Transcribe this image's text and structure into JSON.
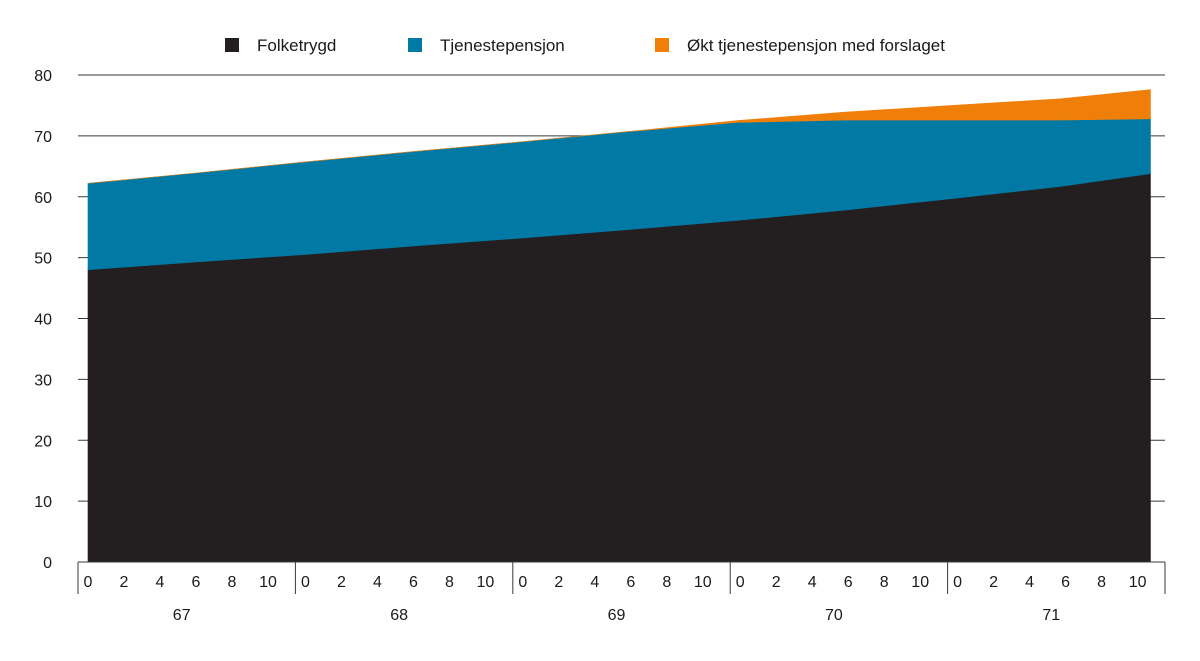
{
  "chart_data": {
    "type": "area",
    "stacked": true,
    "title": "",
    "xlabel": "",
    "ylabel": "",
    "ylim": [
      0,
      80
    ],
    "yticks": [
      0,
      10,
      20,
      30,
      40,
      50,
      60,
      70,
      80
    ],
    "grid": "horizontal",
    "legend_position": "top",
    "x_groups": [
      "67",
      "68",
      "69",
      "70",
      "71"
    ],
    "x_sub_ticks": [
      "0",
      "2",
      "4",
      "6",
      "8",
      "10"
    ],
    "x_months_per_group": 12,
    "x": [
      0,
      6,
      12,
      18,
      24,
      30,
      36,
      42,
      48,
      54,
      59
    ],
    "series": [
      {
        "name": "Folketrygd",
        "color": "#231f20",
        "values": [
          48.0,
          49.3,
          50.5,
          51.9,
          53.2,
          54.6,
          56.1,
          57.8,
          59.7,
          61.7,
          63.8
        ]
      },
      {
        "name": "Tjenestepensjon",
        "color": "#0079a4",
        "values": [
          14.2,
          14.6,
          15.2,
          15.5,
          15.8,
          16.1,
          16.1,
          14.8,
          12.9,
          10.9,
          9.0
        ]
      },
      {
        "name": "Økt tjenestepensjon med forslaget",
        "color": "#f07f09",
        "values": [
          0.0,
          0.0,
          0.0,
          0.0,
          0.0,
          0.0,
          0.3,
          1.3,
          2.4,
          3.5,
          4.8
        ]
      }
    ]
  }
}
